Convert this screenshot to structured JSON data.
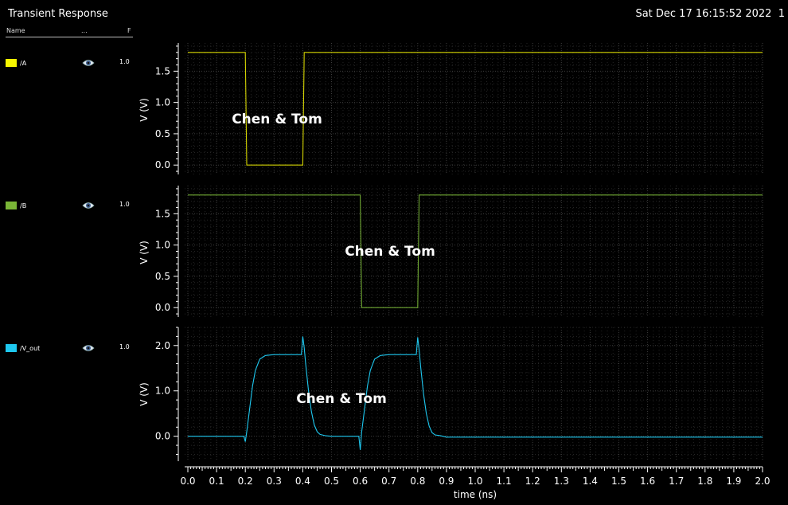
{
  "window": {
    "title": "Transient Response",
    "datestamp": "Sat Dec 17 16:15:52 2022  1"
  },
  "legend": {
    "headers": {
      "name": "Name",
      "dots": "...",
      "f": "F"
    },
    "signals": [
      {
        "name": "/A",
        "color": "#f6f600",
        "scale": "1.0",
        "icon": "eye-icon"
      },
      {
        "name": "/B",
        "color": "#7ab536",
        "scale": "1.0",
        "icon": "eye-icon"
      },
      {
        "name": "/V_out",
        "color": "#1ec8ef",
        "scale": "1.0",
        "icon": "eye-icon"
      }
    ]
  },
  "watermark": "Chen & Tom",
  "chart_data": [
    {
      "type": "line",
      "series": [
        {
          "name": "/A",
          "color": "#d4d400",
          "x": [
            0.0,
            0.2,
            0.205,
            0.4,
            0.405,
            2.0
          ],
          "y": [
            1.8,
            1.8,
            0.0,
            0.0,
            1.8,
            1.8
          ]
        }
      ],
      "ylabel": "V (V)",
      "ylim": [
        -0.15,
        1.95
      ],
      "yticks": [
        0.0,
        0.5,
        1.0,
        1.5
      ],
      "ytick_labels": [
        "0.0",
        "0.5",
        "1.0",
        "1.5"
      ],
      "xlim": [
        0.0,
        2.0
      ],
      "grid": true
    },
    {
      "type": "line",
      "series": [
        {
          "name": "/B",
          "color": "#6fa832",
          "x": [
            0.0,
            0.6,
            0.605,
            0.8,
            0.805,
            2.0
          ],
          "y": [
            1.8,
            1.8,
            0.0,
            0.0,
            1.8,
            1.8
          ]
        }
      ],
      "ylabel": "V (V)",
      "ylim": [
        -0.15,
        1.95
      ],
      "yticks": [
        0.0,
        0.5,
        1.0,
        1.5
      ],
      "ytick_labels": [
        "0.0",
        "0.5",
        "1.0",
        "1.5"
      ],
      "xlim": [
        0.0,
        2.0
      ],
      "grid": true
    },
    {
      "type": "line",
      "series": [
        {
          "name": "/V_out",
          "color": "#1ec8ef",
          "x": [
            0.0,
            0.195,
            0.2,
            0.205,
            0.215,
            0.225,
            0.235,
            0.25,
            0.27,
            0.3,
            0.35,
            0.395,
            0.4,
            0.405,
            0.41,
            0.42,
            0.43,
            0.44,
            0.45,
            0.46,
            0.48,
            0.5,
            0.55,
            0.595,
            0.6,
            0.605,
            0.615,
            0.625,
            0.635,
            0.65,
            0.67,
            0.7,
            0.75,
            0.795,
            0.8,
            0.805,
            0.81,
            0.82,
            0.83,
            0.84,
            0.85,
            0.86,
            0.88,
            0.9,
            2.0
          ],
          "y": [
            0.0,
            0.0,
            -0.12,
            0.1,
            0.6,
            1.1,
            1.45,
            1.7,
            1.78,
            1.8,
            1.8,
            1.8,
            2.2,
            1.95,
            1.6,
            1.0,
            0.55,
            0.25,
            0.1,
            0.04,
            0.01,
            0.0,
            0.0,
            0.0,
            -0.3,
            0.1,
            0.6,
            1.1,
            1.45,
            1.7,
            1.78,
            1.8,
            1.8,
            1.8,
            2.18,
            1.9,
            1.55,
            0.95,
            0.5,
            0.22,
            0.08,
            0.03,
            0.01,
            -0.02,
            -0.02
          ]
        }
      ],
      "ylabel": "V (V)",
      "ylim": [
        -0.55,
        2.4
      ],
      "yticks": [
        0.0,
        1.0,
        2.0
      ],
      "ytick_labels": [
        "0.0",
        "1.0",
        "2.0"
      ],
      "xlim": [
        0.0,
        2.0
      ],
      "xlabel": "time (ns)",
      "xticks": [
        0.0,
        0.1,
        0.2,
        0.3,
        0.4,
        0.5,
        0.6,
        0.7,
        0.8,
        0.9,
        1.0,
        1.1,
        1.2,
        1.3,
        1.4,
        1.5,
        1.6,
        1.7,
        1.8,
        1.9,
        2.0
      ],
      "xtick_labels": [
        "0.0",
        "0.1",
        "0.2",
        "0.3",
        "0.4",
        "0.5",
        "0.6",
        "0.7",
        "0.8",
        "0.9",
        "1.0",
        "1.1",
        "1.2",
        "1.3",
        "1.4",
        "1.5",
        "1.6",
        "1.7",
        "1.8",
        "1.9",
        "2.0"
      ],
      "grid": true
    }
  ]
}
